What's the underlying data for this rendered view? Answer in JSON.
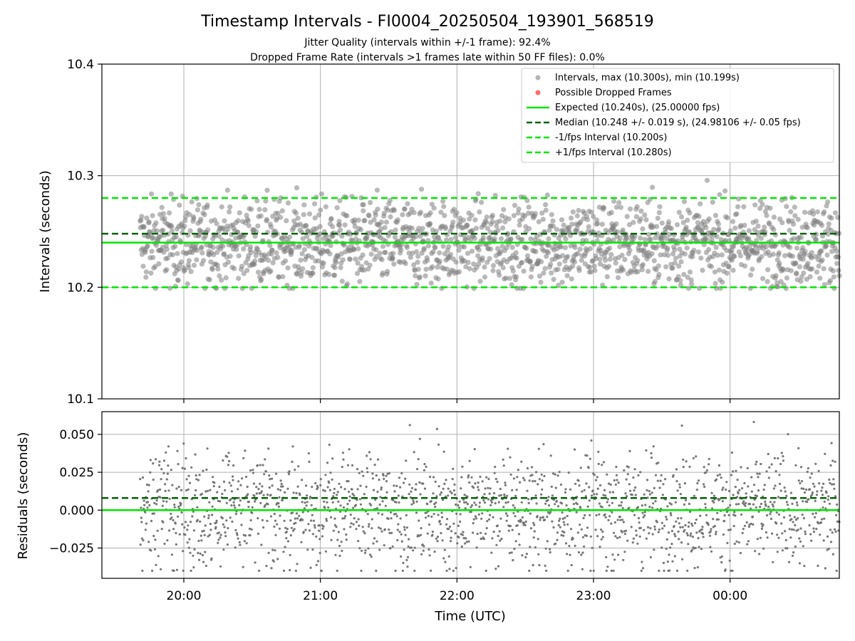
{
  "chart_data": {
    "title": "Timestamp Intervals - FI0004_20250504_193901_568519",
    "subtitle_lines": [
      "Jitter Quality (intervals within +/-1 frame): 92.4%",
      "Dropped Frame Rate (intervals >1 frames late within 50 FF files): 0.0%"
    ],
    "xlabel": "Time (UTC)",
    "x_tick_labels": [
      "20:00",
      "21:00",
      "22:00",
      "23:00",
      "00:00"
    ],
    "x_ticks_hours": [
      20,
      21,
      22,
      23,
      24
    ],
    "x_range_hours": [
      19.4,
      24.8
    ],
    "data_x_range_hours": [
      19.68,
      24.8
    ],
    "grid": true,
    "panels": [
      {
        "type": "scatter",
        "ylabel": "Intervals (seconds)",
        "ylim": [
          10.1,
          10.4
        ],
        "y_tick_values": [
          10.1,
          10.2,
          10.3,
          10.4
        ],
        "y_tick_labels": [
          "10.1",
          "10.2",
          "10.3",
          "10.4"
        ],
        "legend_placement": "top-right",
        "scatter_series": {
          "name": "Intervals, max (10.300s), min (10.199s)",
          "color": "#808080",
          "count": 1800,
          "center": 10.24,
          "spread": 0.02,
          "min": 10.199,
          "max": 10.3
        },
        "dropped_series": {
          "name": "Possible Dropped Frames",
          "color": "#ff5050",
          "count": 0
        },
        "lines": [
          {
            "name": "Expected (10.240s), (25.00000 fps)",
            "y": 10.24,
            "style": "solid",
            "color": "#00e600"
          },
          {
            "name": "Median (10.248 +/- 0.019 s), (24.98106 +/- 0.05 fps)",
            "y": 10.248,
            "style": "dashed",
            "color": "#006400"
          },
          {
            "name": "-1/fps Interval (10.200s)",
            "y": 10.2,
            "style": "dashed",
            "color": "#00e600"
          },
          {
            "name": "+1/fps Interval (10.280s)",
            "y": 10.28,
            "style": "dashed",
            "color": "#00e600"
          }
        ]
      },
      {
        "type": "scatter",
        "ylabel": "Residuals (seconds)",
        "ylim": [
          -0.045,
          0.065
        ],
        "y_tick_values": [
          -0.025,
          0.0,
          0.025,
          0.05
        ],
        "y_tick_labels": [
          "−0.025",
          "0.000",
          "0.025",
          "0.050"
        ],
        "scatter_series": {
          "color": "#707070",
          "count": 1800,
          "center": 0.0,
          "spread": 0.02,
          "min": -0.04,
          "max": 0.06
        },
        "lines": [
          {
            "y": 0.0,
            "style": "solid",
            "color": "#00e600"
          },
          {
            "y": 0.008,
            "style": "dashed",
            "color": "#006400"
          }
        ]
      }
    ]
  }
}
